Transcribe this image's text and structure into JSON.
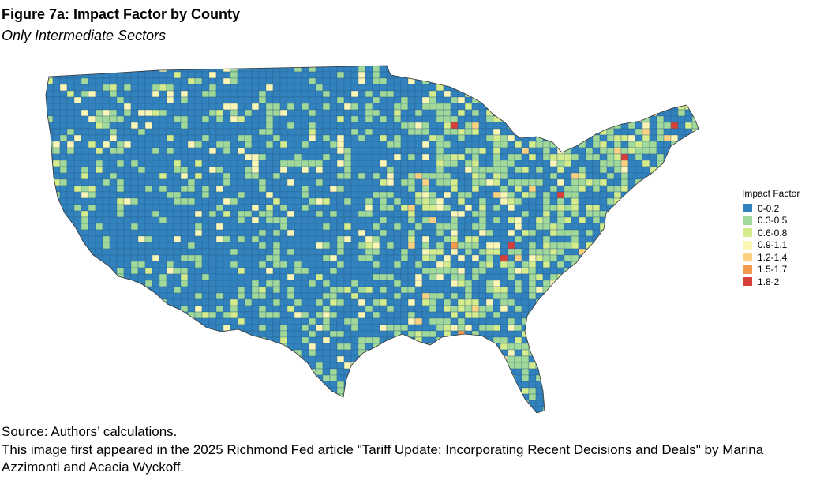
{
  "title": "Figure 7a: Impact Factor by County",
  "subtitle": "Only Intermediate Sectors",
  "legend": {
    "title": "Impact Factor",
    "items": [
      {
        "label": "0-0.2",
        "color": "#3182bd"
      },
      {
        "label": "0.3-0.5",
        "color": "#a1d99b"
      },
      {
        "label": "0.6-0.8",
        "color": "#d4ec8c"
      },
      {
        "label": "0.9-1.1",
        "color": "#fbf6b5"
      },
      {
        "label": "1.2-1.4",
        "color": "#fdd17f"
      },
      {
        "label": "1.5-1.7",
        "color": "#f39a4c"
      },
      {
        "label": "1.8-2",
        "color": "#d63f3a"
      }
    ]
  },
  "map": {
    "region": "Contiguous United States",
    "unit": "County",
    "dominant_class": "0-0.2"
  },
  "footer": {
    "source": "Source: Authors’ calculations.",
    "note": "This image first appeared in the 2025 Richmond Fed article \"Tariff Update: Incorporating Recent Decisions and Deals\" by Marina Azzimonti and Acacia Wyckoff."
  }
}
